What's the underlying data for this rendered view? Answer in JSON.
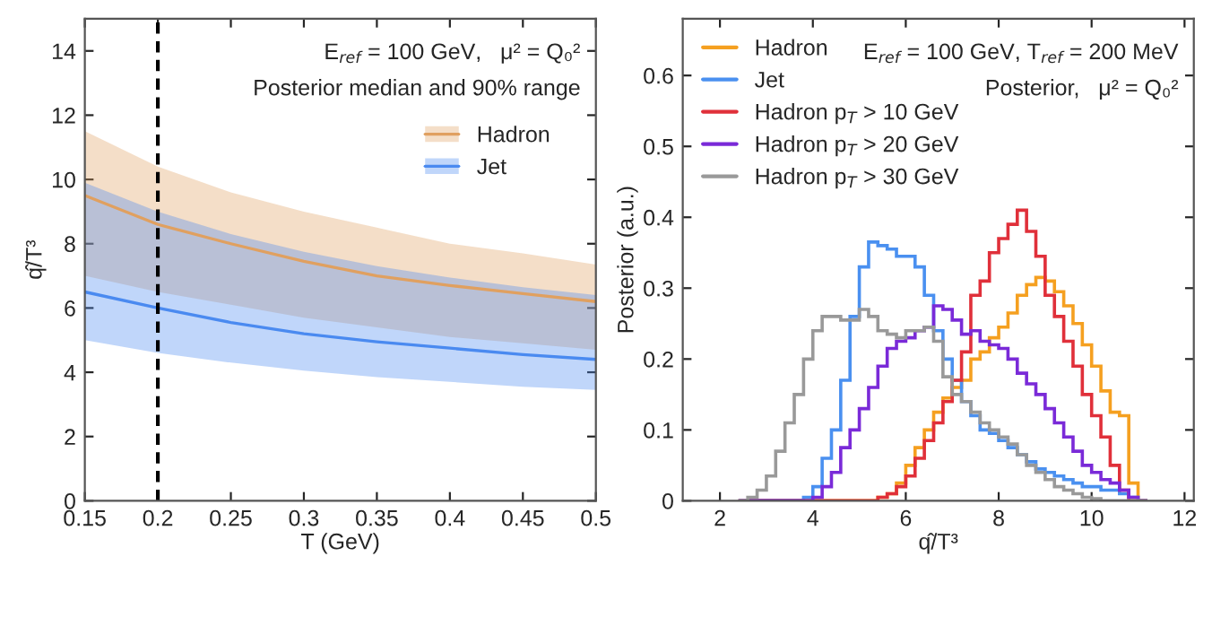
{
  "chart_data": [
    {
      "type": "line",
      "xlabel": "T (GeV)",
      "ylabel": "q̂/T³",
      "annotations": [
        "E$_{ref}$ = 100 GeV,   μ² = Q₀²",
        "Posterior median and 90% range"
      ],
      "x": [
        0.15,
        0.2,
        0.25,
        0.3,
        0.35,
        0.4,
        0.45,
        0.5
      ],
      "series": [
        {
          "name": "Hadron",
          "color": "#e0a060",
          "values": [
            9.5,
            8.6,
            8.0,
            7.45,
            7.0,
            6.7,
            6.45,
            6.2
          ],
          "lower": [
            7.0,
            6.5,
            6.1,
            5.7,
            5.4,
            5.1,
            4.9,
            4.7
          ],
          "upper": [
            11.5,
            10.4,
            9.6,
            9.0,
            8.5,
            8.0,
            7.7,
            7.35
          ]
        },
        {
          "name": "Jet",
          "color": "#4a8af0",
          "values": [
            6.5,
            6.0,
            5.55,
            5.2,
            4.95,
            4.75,
            4.55,
            4.4
          ],
          "lower": [
            5.0,
            4.6,
            4.3,
            4.05,
            3.85,
            3.7,
            3.55,
            3.45
          ],
          "upper": [
            9.9,
            9.0,
            8.3,
            7.75,
            7.3,
            6.95,
            6.65,
            6.4
          ]
        }
      ],
      "ref_lines": [
        {
          "axis": "x",
          "value": 0.2,
          "color": "#000000",
          "line_style": "dashed"
        }
      ],
      "xlim": [
        0.15,
        0.5
      ],
      "xticks": [
        0.15,
        0.2,
        0.25,
        0.3,
        0.35,
        0.4,
        0.45,
        0.5
      ],
      "ylim": [
        0,
        15
      ],
      "yticks": [
        0,
        2,
        4,
        6,
        8,
        10,
        12,
        14
      ],
      "legend": "top right",
      "grid": false
    },
    {
      "type": "histogram",
      "xlabel": "q̂/T³",
      "ylabel": "Posterior (a.u.)",
      "annotations": [
        "E$_{ref}$ = 100 GeV, T$_{ref}$ = 200 MeV",
        "Posterior,   μ² = Q₀²"
      ],
      "bins": [
        2.4,
        2.6,
        2.8,
        3.0,
        3.2,
        3.4,
        3.6,
        3.8,
        4.0,
        4.2,
        4.4,
        4.6,
        4.8,
        5.0,
        5.2,
        5.4,
        5.6,
        5.8,
        6.0,
        6.2,
        6.4,
        6.6,
        6.8,
        7.0,
        7.2,
        7.4,
        7.6,
        7.8,
        8.0,
        8.2,
        8.4,
        8.6,
        8.8,
        9.0,
        9.2,
        9.4,
        9.6,
        9.8,
        10.0,
        10.2,
        10.4,
        10.6,
        10.8,
        11.0,
        11.2
      ],
      "series": [
        {
          "name": "Hadron",
          "color": "#f5a020",
          "values": [
            0,
            0,
            0,
            0,
            0,
            0,
            0,
            0,
            0,
            0,
            0,
            0,
            0,
            0,
            0,
            0.005,
            0.01,
            0.025,
            0.05,
            0.075,
            0.1,
            0.125,
            0.145,
            0.16,
            0.17,
            0.2,
            0.21,
            0.23,
            0.245,
            0.265,
            0.29,
            0.305,
            0.315,
            0.31,
            0.295,
            0.275,
            0.25,
            0.22,
            0.19,
            0.155,
            0.125,
            0.12,
            0.025,
            0
          ]
        },
        {
          "name": "Jet",
          "color": "#4a90f0",
          "values": [
            0,
            0,
            0,
            0,
            0,
            0,
            0,
            0.005,
            0.02,
            0.06,
            0.1,
            0.17,
            0.26,
            0.33,
            0.365,
            0.36,
            0.355,
            0.345,
            0.345,
            0.33,
            0.29,
            0.24,
            0.2,
            0.17,
            0.14,
            0.12,
            0.1,
            0.095,
            0.085,
            0.075,
            0.065,
            0.055,
            0.045,
            0.04,
            0.035,
            0.03,
            0.025,
            0.02,
            0.02,
            0.015,
            0.015,
            0.01,
            0.005,
            0
          ]
        },
        {
          "name": "Hadron p$_{T}$ > 10 GeV",
          "color": "#e0303a",
          "values": [
            0,
            0,
            0,
            0,
            0,
            0,
            0,
            0,
            0,
            0,
            0,
            0,
            0,
            0,
            0,
            0.005,
            0.01,
            0.02,
            0.035,
            0.06,
            0.085,
            0.11,
            0.14,
            0.17,
            0.21,
            0.29,
            0.31,
            0.35,
            0.37,
            0.39,
            0.41,
            0.38,
            0.345,
            0.29,
            0.26,
            0.225,
            0.19,
            0.15,
            0.12,
            0.09,
            0.05,
            0.015,
            0,
            0
          ]
        },
        {
          "name": "Hadron p$_{T}$ > 20 GeV",
          "color": "#7a2ad8",
          "values": [
            0,
            0,
            0,
            0,
            0,
            0,
            0,
            0,
            0.005,
            0.02,
            0.04,
            0.075,
            0.1,
            0.13,
            0.16,
            0.19,
            0.215,
            0.225,
            0.23,
            0.24,
            0.245,
            0.275,
            0.27,
            0.255,
            0.235,
            0.24,
            0.225,
            0.22,
            0.215,
            0.2,
            0.18,
            0.165,
            0.15,
            0.13,
            0.11,
            0.09,
            0.07,
            0.05,
            0.04,
            0.03,
            0.025,
            0.015,
            0.005,
            0
          ]
        },
        {
          "name": "Hadron p$_{T}$ > 30 GeV",
          "color": "#999999",
          "values": [
            0,
            0.005,
            0.015,
            0.035,
            0.07,
            0.11,
            0.15,
            0.2,
            0.24,
            0.26,
            0.26,
            0.255,
            0.255,
            0.27,
            0.26,
            0.24,
            0.235,
            0.23,
            0.24,
            0.24,
            0.245,
            0.225,
            0.175,
            0.15,
            0.14,
            0.125,
            0.11,
            0.1,
            0.09,
            0.08,
            0.065,
            0.05,
            0.04,
            0.03,
            0.02,
            0.015,
            0.01,
            0.005,
            0.003,
            0,
            0,
            0,
            0,
            0
          ]
        }
      ],
      "xlim": [
        1.2,
        12.2
      ],
      "xticks": [
        2,
        4,
        6,
        8,
        10,
        12
      ],
      "ylim": [
        0,
        0.68
      ],
      "yticks": [
        0,
        0.1,
        0.2,
        0.3,
        0.4,
        0.5,
        0.6
      ],
      "legend": "top left",
      "grid": false
    }
  ]
}
